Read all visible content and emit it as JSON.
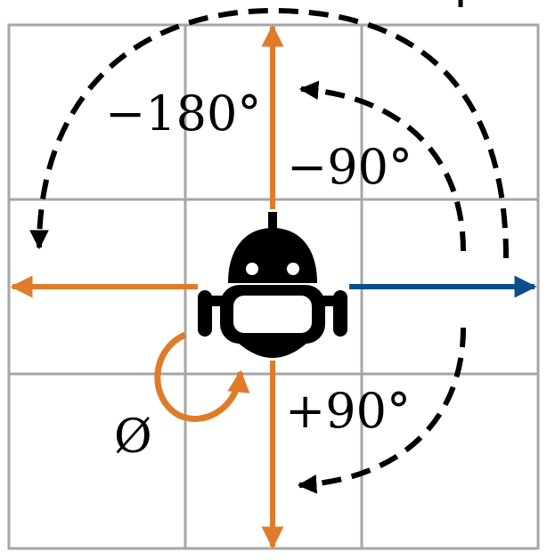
{
  "labels": {
    "minus_180": "−180°",
    "minus_90": "−90°",
    "plus_90": "+90°",
    "phi": "Ø"
  },
  "colors": {
    "grid": "#a6a6a6",
    "orange": "#e07b2a",
    "blue": "#0b4f8a",
    "dashed": "#000000",
    "robot": "#000000",
    "background": "#ffffff"
  },
  "grid": {
    "rows": 3,
    "cols": 3
  },
  "icons": {
    "robot": "robot-icon"
  }
}
